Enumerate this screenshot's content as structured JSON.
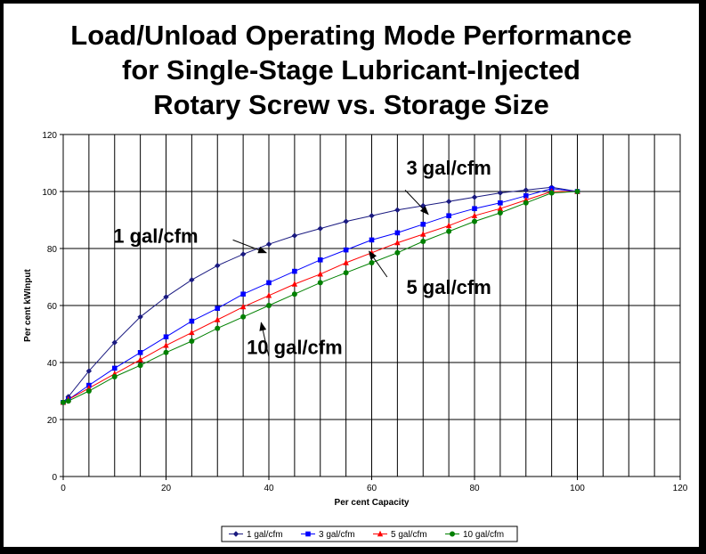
{
  "chart_data": {
    "type": "line",
    "title": [
      "Load/Unload Operating Mode Performance",
      "for Single-Stage Lubricant-Injected",
      "Rotary Screw vs. Storage Size"
    ],
    "xlabel": "Per cent Capacity",
    "ylabel": "Per cent kWInput",
    "xlim": [
      0,
      120
    ],
    "ylim": [
      0,
      120
    ],
    "xticks": [
      0,
      20,
      40,
      60,
      80,
      100,
      120
    ],
    "yticks": [
      0,
      20,
      40,
      60,
      80,
      100,
      120
    ],
    "vertical_grid_step": 5,
    "horizontal_grid_step": 20,
    "legend_position": "bottom",
    "series": [
      {
        "name": "1 gal/cfm",
        "color": "#1a1a80",
        "marker": "diamond",
        "x": [
          0,
          1,
          5,
          10,
          15,
          20,
          25,
          30,
          35,
          40,
          45,
          50,
          55,
          60,
          65,
          70,
          75,
          80,
          85,
          90,
          95,
          100
        ],
        "y": [
          26,
          28,
          37,
          47,
          56,
          63,
          69,
          74,
          78,
          81.5,
          84.5,
          87,
          89.5,
          91.5,
          93.5,
          95,
          96.5,
          98,
          99.5,
          100.5,
          101.5,
          100
        ]
      },
      {
        "name": "3 gal/cfm",
        "color": "#0000ff",
        "marker": "square",
        "x": [
          0,
          1,
          5,
          10,
          15,
          20,
          25,
          30,
          35,
          40,
          45,
          50,
          55,
          60,
          65,
          70,
          75,
          80,
          85,
          90,
          95,
          100
        ],
        "y": [
          26,
          27,
          32,
          38,
          43.5,
          49,
          54.5,
          59,
          64,
          68,
          72,
          76,
          79.5,
          83,
          85.5,
          88.5,
          91.5,
          94,
          96,
          98.5,
          101,
          100
        ]
      },
      {
        "name": "5 gal/cfm",
        "color": "#ff0000",
        "marker": "triangle",
        "x": [
          0,
          1,
          5,
          10,
          15,
          20,
          25,
          30,
          35,
          40,
          45,
          50,
          55,
          60,
          65,
          70,
          75,
          80,
          85,
          90,
          95,
          100
        ],
        "y": [
          26,
          27,
          31,
          36,
          41,
          46,
          50.5,
          55,
          59.5,
          63.5,
          67.5,
          71,
          75,
          78.5,
          82,
          85,
          88,
          91.5,
          94,
          97,
          100,
          100
        ]
      },
      {
        "name": "10 gal/cfm",
        "color": "#008000",
        "marker": "circle",
        "x": [
          0,
          1,
          5,
          10,
          15,
          20,
          25,
          30,
          35,
          40,
          45,
          50,
          55,
          60,
          65,
          70,
          75,
          80,
          85,
          90,
          95,
          100
        ],
        "y": [
          26,
          26.5,
          30,
          35,
          39,
          43.5,
          47.5,
          52,
          56,
          60,
          64,
          68,
          71.5,
          75,
          78.5,
          82.5,
          86,
          89.5,
          92.5,
          96,
          99.5,
          100
        ]
      }
    ],
    "annotations": [
      {
        "text": "1 gal/cfm",
        "label_x": 18,
        "label_y": 82,
        "arrow_from": [
          33,
          83
        ],
        "arrow_to": [
          39.5,
          78.5
        ]
      },
      {
        "text": "3 gal/cfm",
        "label_x": 75,
        "label_y": 106,
        "arrow_from": [
          66.5,
          100.5
        ],
        "arrow_to": [
          71,
          92
        ]
      },
      {
        "text": "5 gal/cfm",
        "label_x": 75,
        "label_y": 64,
        "arrow_from": [
          63,
          70
        ],
        "arrow_to": [
          59.5,
          79
        ]
      },
      {
        "text": "10 gal/cfm",
        "label_x": 45,
        "label_y": 43,
        "arrow_from": [
          40,
          42
        ],
        "arrow_to": [
          38.5,
          54
        ]
      }
    ]
  }
}
